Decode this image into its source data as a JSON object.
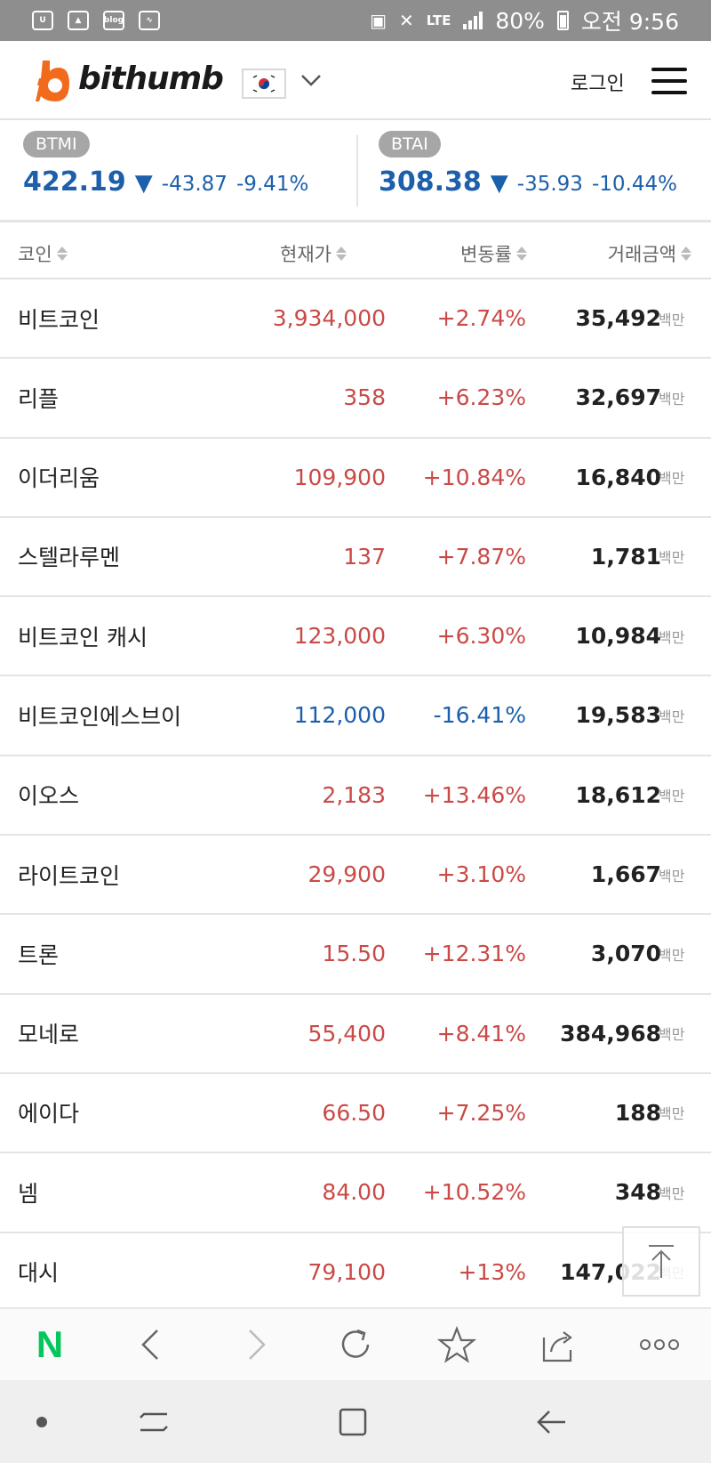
{
  "status_bar": {
    "icons_left": [
      "notification-app-icon",
      "gallery-icon",
      "blog-icon",
      "activity-icon"
    ],
    "blog_label": "blog",
    "lte_label": "LTE",
    "battery": "80%",
    "time": "오전 9:56"
  },
  "header": {
    "brand": "bithumb",
    "brand_color": "#f26b1d",
    "login": "로그인"
  },
  "indices": [
    {
      "name": "BTMI",
      "value": "422.19",
      "arrow": "▼",
      "change": "-43.87",
      "percent": "-9.41%"
    },
    {
      "name": "BTAI",
      "value": "308.38",
      "arrow": "▼",
      "change": "-35.93",
      "percent": "-10.44%"
    }
  ],
  "table": {
    "headers": {
      "coin": "코인",
      "price": "현재가",
      "change": "변동률",
      "volume": "거래금액"
    },
    "unit": "백만",
    "rows": [
      {
        "name": "비트코인",
        "price": "3,934,000",
        "change": "+2.74%",
        "volume": "35,492",
        "trend": "up"
      },
      {
        "name": "리플",
        "price": "358",
        "change": "+6.23%",
        "volume": "32,697",
        "trend": "up"
      },
      {
        "name": "이더리움",
        "price": "109,900",
        "change": "+10.84%",
        "volume": "16,840",
        "trend": "up"
      },
      {
        "name": "스텔라루멘",
        "price": "137",
        "change": "+7.87%",
        "volume": "1,781",
        "trend": "up"
      },
      {
        "name": "비트코인 캐시",
        "price": "123,000",
        "change": "+6.30%",
        "volume": "10,984",
        "trend": "up"
      },
      {
        "name": "비트코인에스브이",
        "price": "112,000",
        "change": "-16.41%",
        "volume": "19,583",
        "trend": "down"
      },
      {
        "name": "이오스",
        "price": "2,183",
        "change": "+13.46%",
        "volume": "18,612",
        "trend": "up"
      },
      {
        "name": "라이트코인",
        "price": "29,900",
        "change": "+3.10%",
        "volume": "1,667",
        "trend": "up"
      },
      {
        "name": "트론",
        "price": "15.50",
        "change": "+12.31%",
        "volume": "3,070",
        "trend": "up"
      },
      {
        "name": "모네로",
        "price": "55,400",
        "change": "+8.41%",
        "volume": "384,968",
        "trend": "up"
      },
      {
        "name": "에이다",
        "price": "66.50",
        "change": "+7.25%",
        "volume": "188",
        "trend": "up"
      },
      {
        "name": "넴",
        "price": "84.00",
        "change": "+10.52%",
        "volume": "348",
        "trend": "up"
      },
      {
        "name": "대시",
        "price": "79,100",
        "change": "+13%",
        "volume": "147,022",
        "trend": "up"
      }
    ]
  },
  "colors": {
    "up": "#c94a47",
    "down": "#1c5fab",
    "naver_green": "#03c75a"
  },
  "browser_toolbar": {
    "home_label": "N",
    "items": [
      "naver-home-icon",
      "back-icon",
      "forward-icon",
      "refresh-icon",
      "bookmark-star-icon",
      "share-icon",
      "more-icon"
    ]
  },
  "nav_bar": {
    "items": [
      "dot-icon",
      "recent-apps-icon",
      "home-icon",
      "back-icon"
    ]
  }
}
